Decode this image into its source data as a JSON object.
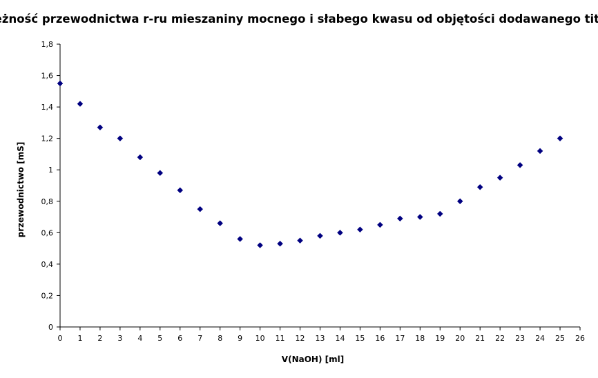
{
  "chart_data": {
    "type": "scatter",
    "title": "leżność przewodnictwa r-ru mieszaniny mocnego i słabego kwasu od objętości dodawanego titran",
    "xlabel": "V(NaOH)  [ml]",
    "ylabel": "przewodnictwo [mS]",
    "xlim": [
      0,
      26
    ],
    "ylim": [
      0,
      1.8
    ],
    "x_ticks": [
      "0",
      "1",
      "2",
      "3",
      "4",
      "5",
      "6",
      "7",
      "8",
      "9",
      "10",
      "11",
      "12",
      "13",
      "14",
      "15",
      "16",
      "17",
      "18",
      "19",
      "20",
      "21",
      "22",
      "23",
      "24",
      "25",
      "26"
    ],
    "y_ticks": [
      "0",
      "0,2",
      "0,4",
      "0,6",
      "0,8",
      "1",
      "1,2",
      "1,4",
      "1,6",
      "1,8"
    ],
    "grid": false,
    "legend": "none",
    "marker": "diamond",
    "marker_color": "#000080",
    "x": [
      0,
      1,
      2,
      3,
      4,
      5,
      6,
      7,
      8,
      9,
      10,
      11,
      12,
      13,
      14,
      15,
      16,
      17,
      18,
      19,
      20,
      21,
      22,
      23,
      24,
      25
    ],
    "y": [
      1.55,
      1.42,
      1.27,
      1.2,
      1.08,
      0.98,
      0.87,
      0.75,
      0.66,
      0.56,
      0.52,
      0.53,
      0.55,
      0.58,
      0.6,
      0.62,
      0.65,
      0.69,
      0.7,
      0.72,
      0.8,
      0.89,
      0.95,
      1.03,
      1.12,
      1.2
    ]
  }
}
